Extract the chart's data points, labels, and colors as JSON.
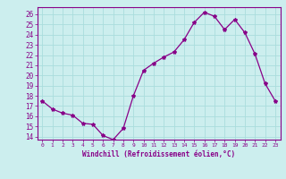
{
  "x": [
    0,
    1,
    2,
    3,
    4,
    5,
    6,
    7,
    8,
    9,
    10,
    11,
    12,
    13,
    14,
    15,
    16,
    17,
    18,
    19,
    20,
    21,
    22,
    23
  ],
  "y": [
    17.5,
    16.7,
    16.3,
    16.1,
    15.3,
    15.2,
    14.1,
    13.7,
    14.8,
    18.0,
    20.5,
    21.2,
    21.8,
    22.3,
    23.5,
    25.2,
    26.2,
    25.8,
    24.5,
    25.5,
    24.2,
    22.1,
    19.2,
    17.5
  ],
  "line_color": "#880088",
  "marker": "*",
  "marker_size": 3,
  "bg_color": "#cceeee",
  "grid_color": "#aadddd",
  "xlabel": "Windchill (Refroidissement éolien,°C)",
  "ylabel_ticks": [
    14,
    15,
    16,
    17,
    18,
    19,
    20,
    21,
    22,
    23,
    24,
    25,
    26
  ],
  "ylim": [
    13.7,
    26.7
  ],
  "xlim": [
    -0.5,
    23.5
  ],
  "axis_color": "#880088",
  "tick_color": "#880088",
  "label_color": "#880088",
  "spine_color": "#880088"
}
